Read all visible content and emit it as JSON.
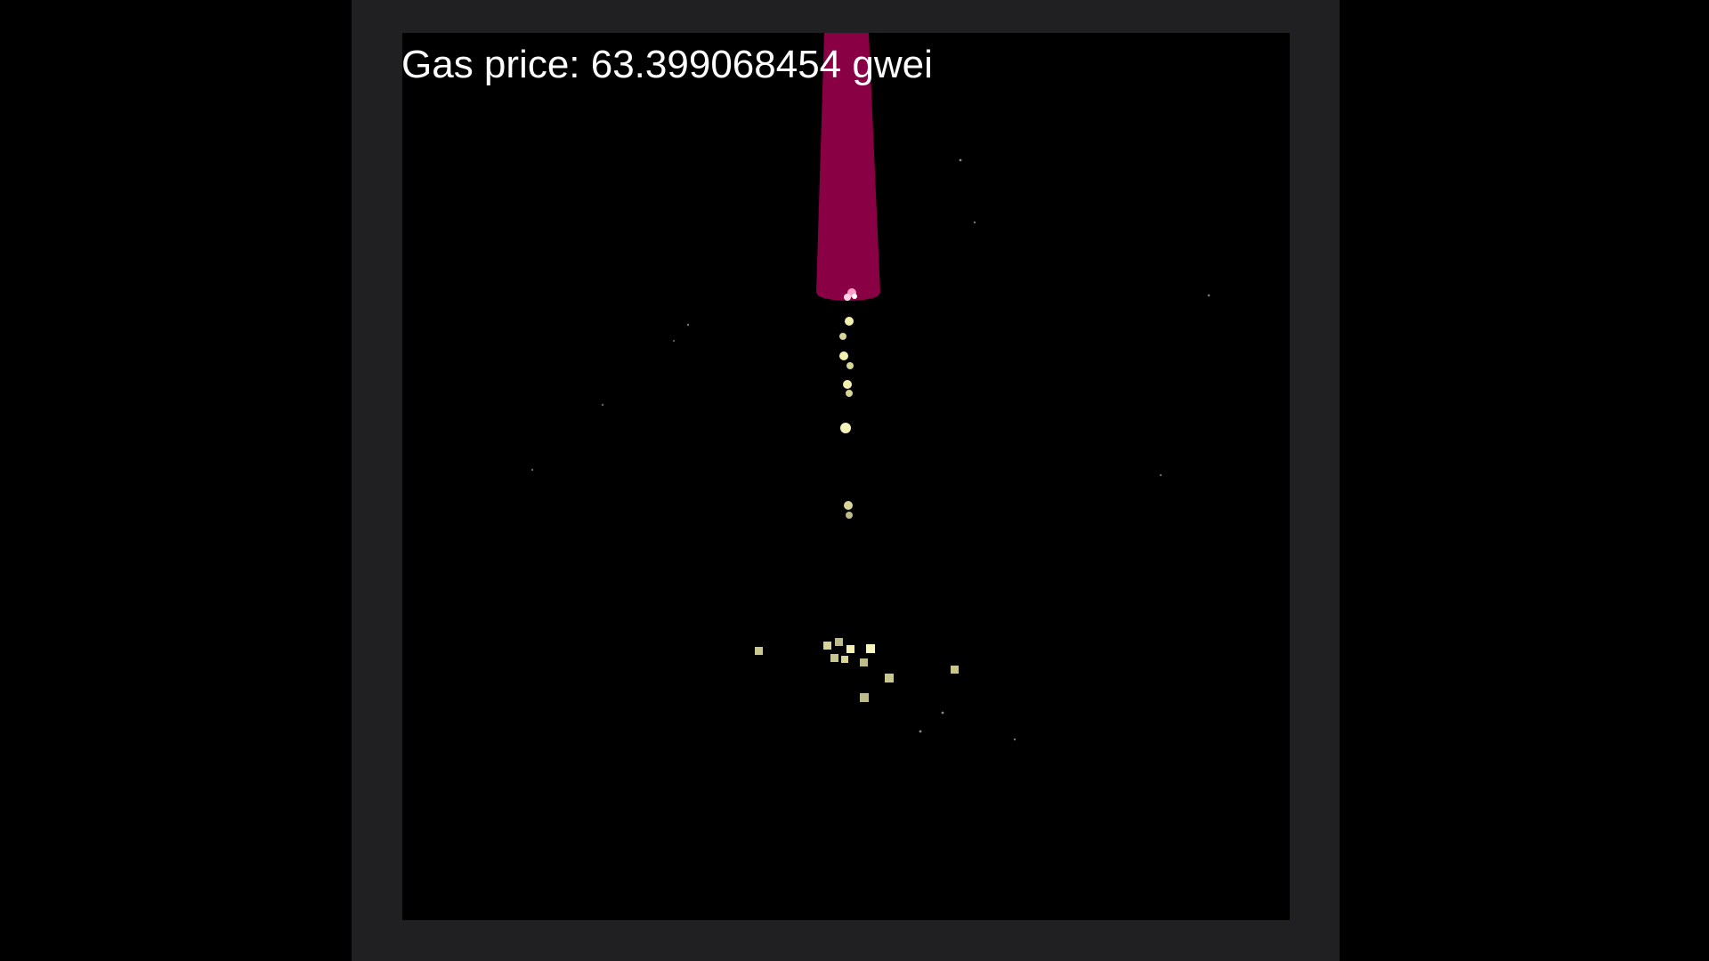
{
  "app": {
    "gas_price_text": "Gas price: 63.399068454 gwei"
  },
  "colors": {
    "page_background": "#000000",
    "frame_background": "#202022",
    "canvas_background": "#000000",
    "beam": "#8a0045",
    "particle": "#f4f1b0",
    "spark": "#ff9fc7",
    "star": "#8a8a8a"
  },
  "icons": {
    "beam": "energy-beam-shape",
    "particles": "glowing-particle-dots",
    "stars": "background-star-dots"
  }
}
